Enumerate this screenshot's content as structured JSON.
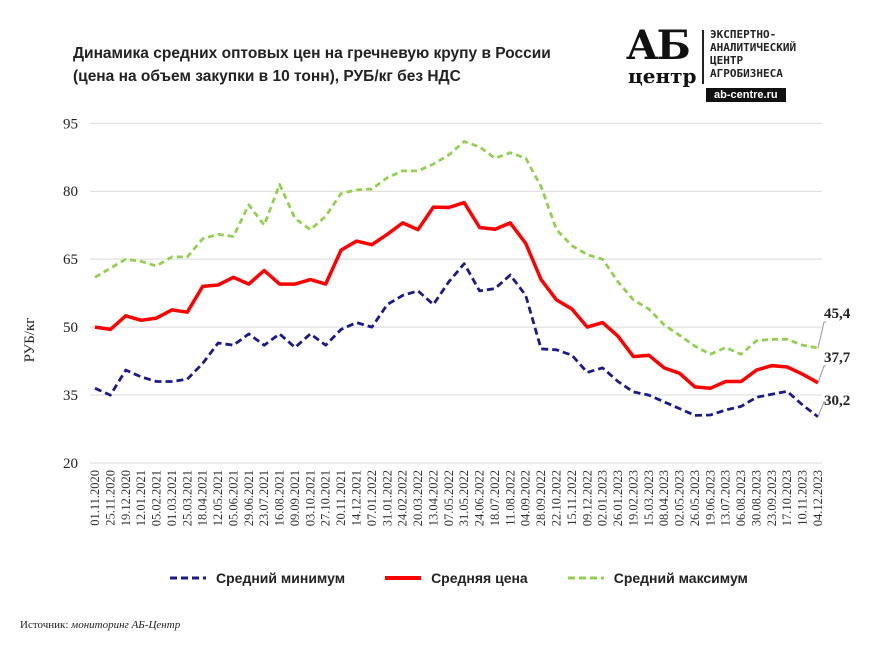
{
  "title_line1": "Динамика средних оптовых цен на гречневую крупу в России",
  "title_line2": "(цена на объем закупки в 10 тонн), РУБ/кг без НДС",
  "logo": {
    "mark": "АБ",
    "mark_sub": "центр",
    "lines": [
      "ЭКСПЕРТНО-",
      "АНАЛИТИЧЕСКИЙ",
      "ЦЕНТР",
      "АГРОБИЗНЕСА"
    ],
    "url": "ab-centre.ru"
  },
  "source_label": "Источник:",
  "source_value": "мониторинг АБ-Центр",
  "chart_data": {
    "type": "line",
    "title": "Динамика средних оптовых цен на гречневую крупу в России (цена на объем закупки в 10 тонн), РУБ/кг без НДС",
    "xlabel": "",
    "ylabel": "РУБ/кг",
    "ylim": [
      20,
      95
    ],
    "yticks": [
      "95",
      "80",
      "65",
      "50",
      "35",
      "20"
    ],
    "ytick_values": [
      95,
      80,
      65,
      50,
      35,
      20
    ],
    "grid": true,
    "legend_position": "bottom",
    "categories": [
      "01.11.2020",
      "25.11.2020",
      "19.12.2020",
      "12.01.2021",
      "05.02.2021",
      "01.03.2021",
      "25.03.2021",
      "18.04.2021",
      "12.05.2021",
      "05.06.2021",
      "29.06.2021",
      "23.07.2021",
      "16.08.2021",
      "09.09.2021",
      "03.10.2021",
      "27.10.2021",
      "20.11.2021",
      "14.12.2021",
      "07.01.2022",
      "31.01.2022",
      "24.02.2022",
      "20.03.2022",
      "13.04.2022",
      "07.05.2022",
      "31.05.2022",
      "24.06.2022",
      "18.07.2022",
      "11.08.2022",
      "04.09.2022",
      "28.09.2022",
      "22.10.2022",
      "15.11.2022",
      "09.12.2022",
      "02.01.2023",
      "26.01.2023",
      "19.02.2023",
      "15.03.2023",
      "08.04.2023",
      "02.05.2023",
      "26.05.2023",
      "19.06.2023",
      "13.07.2023",
      "06.08.2023",
      "30.08.2023",
      "23.09.2023",
      "17.10.2023",
      "10.11.2023",
      "04.12.2023"
    ],
    "series": [
      {
        "name": "Средний минимум",
        "color": "#1a1a8c",
        "style": "dashed",
        "end_label": "30,2",
        "values": [
          36.5,
          35,
          40.5,
          39,
          38,
          38,
          38.5,
          42,
          46.5,
          46,
          48.5,
          46,
          48.5,
          45.5,
          48.5,
          46,
          49.5,
          51,
          50,
          55,
          57,
          58,
          55,
          60,
          64,
          58,
          58.5,
          61.5,
          57,
          45.2,
          45,
          43.8,
          40,
          41,
          38,
          35.7,
          35,
          33.5,
          32,
          30.5,
          30.6,
          31.7,
          32.5,
          34.5,
          35.2,
          35.8,
          32.8,
          30.2
        ]
      },
      {
        "name": "Средняя цена",
        "color": "#ff0000",
        "style": "solid",
        "end_label": "37,7",
        "values": [
          50,
          49.5,
          52.5,
          51.5,
          52,
          53.8,
          53.3,
          59,
          59.3,
          61,
          59.5,
          62.5,
          59.5,
          59.5,
          60.5,
          59.5,
          67,
          69,
          68.2,
          70.5,
          73,
          71.5,
          76.5,
          76.4,
          77.5,
          72,
          71.6,
          73,
          68.5,
          60.5,
          56,
          54,
          50,
          51,
          48,
          43.5,
          43.8,
          41,
          39.8,
          36.8,
          36.5,
          38,
          38,
          40.5,
          41.5,
          41.2,
          39.6,
          37.7
        ]
      },
      {
        "name": "Средний максимум",
        "color": "#92d050",
        "style": "dashed",
        "end_label": "45,4",
        "values": [
          61,
          63,
          65,
          64.5,
          63.5,
          65.5,
          65.5,
          69.5,
          70.5,
          70,
          77,
          72.5,
          81.5,
          74,
          71.5,
          74.5,
          79.5,
          80.3,
          80.5,
          83,
          84.5,
          84.5,
          86,
          88,
          91,
          89.8,
          87.3,
          88.5,
          87.3,
          81,
          71.5,
          68,
          66,
          65,
          60,
          56,
          54,
          50.5,
          48.2,
          45.8,
          44,
          45.5,
          44,
          47,
          47.3,
          47.3,
          46,
          45.4
        ]
      }
    ]
  }
}
